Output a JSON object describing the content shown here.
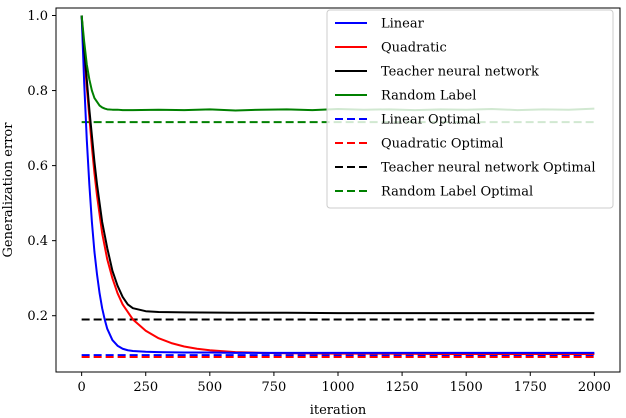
{
  "chart_data": {
    "type": "line",
    "xlabel": "iteration",
    "ylabel": "Generalization error",
    "xlim": [
      -100,
      2100
    ],
    "ylim": [
      0.05,
      1.02
    ],
    "xticks": [
      0,
      250,
      500,
      750,
      1000,
      1250,
      1500,
      1750,
      2000
    ],
    "yticks": [
      0.2,
      0.4,
      0.6,
      0.8,
      1.0
    ],
    "xtick_labels": [
      "0",
      "250",
      "500",
      "750",
      "1000",
      "1250",
      "1500",
      "1750",
      "2000"
    ],
    "ytick_labels": [
      "0.2",
      "0.4",
      "0.6",
      "0.8",
      "1.0"
    ],
    "grid": false,
    "legend_position": "top-right",
    "series": [
      {
        "name": "Linear",
        "color": "#0000ff",
        "style": "solid",
        "x": [
          0,
          10,
          20,
          30,
          40,
          50,
          60,
          70,
          80,
          90,
          100,
          120,
          140,
          160,
          180,
          200,
          250,
          300,
          400,
          500,
          600,
          800,
          1000,
          1200,
          1400,
          1600,
          1800,
          2000
        ],
        "y": [
          1.0,
          0.82,
          0.67,
          0.55,
          0.45,
          0.37,
          0.31,
          0.26,
          0.22,
          0.19,
          0.165,
          0.135,
          0.12,
          0.112,
          0.108,
          0.106,
          0.104,
          0.103,
          0.102,
          0.102,
          0.101,
          0.101,
          0.101,
          0.101,
          0.101,
          0.101,
          0.101,
          0.101
        ]
      },
      {
        "name": "Quadratic",
        "color": "#ff0000",
        "style": "solid",
        "x": [
          0,
          10,
          20,
          30,
          40,
          50,
          60,
          70,
          80,
          100,
          120,
          140,
          160,
          180,
          200,
          250,
          300,
          350,
          400,
          450,
          500,
          600,
          700,
          800,
          1000,
          1200,
          1400,
          1600,
          1800,
          2000
        ],
        "y": [
          1.0,
          0.9,
          0.81,
          0.73,
          0.65,
          0.58,
          0.52,
          0.47,
          0.42,
          0.35,
          0.3,
          0.26,
          0.23,
          0.21,
          0.19,
          0.16,
          0.14,
          0.127,
          0.118,
          0.112,
          0.108,
          0.103,
          0.101,
          0.1,
          0.099,
          0.099,
          0.098,
          0.098,
          0.098,
          0.098
        ]
      },
      {
        "name": "Teacher neural network",
        "color": "#000000",
        "style": "solid",
        "x": [
          0,
          10,
          20,
          30,
          40,
          50,
          60,
          70,
          80,
          100,
          120,
          140,
          160,
          180,
          200,
          250,
          300,
          400,
          600,
          800,
          1000,
          1200,
          1400,
          1600,
          1800,
          2000
        ],
        "y": [
          1.0,
          0.91,
          0.83,
          0.75,
          0.68,
          0.61,
          0.55,
          0.5,
          0.45,
          0.38,
          0.32,
          0.28,
          0.25,
          0.23,
          0.22,
          0.212,
          0.21,
          0.209,
          0.208,
          0.208,
          0.207,
          0.207,
          0.207,
          0.207,
          0.207,
          0.207
        ]
      },
      {
        "name": "Random Label",
        "color": "#008000",
        "style": "solid",
        "x": [
          0,
          10,
          20,
          30,
          40,
          50,
          60,
          70,
          80,
          90,
          100,
          120,
          140,
          160,
          200,
          300,
          400,
          500,
          600,
          700,
          800,
          900,
          1000,
          1100,
          1200,
          1300,
          1400,
          1500,
          1600,
          1700,
          1800,
          1900,
          2000
        ],
        "y": [
          1.0,
          0.93,
          0.87,
          0.83,
          0.8,
          0.78,
          0.77,
          0.76,
          0.755,
          0.752,
          0.75,
          0.749,
          0.749,
          0.748,
          0.748,
          0.749,
          0.748,
          0.75,
          0.747,
          0.749,
          0.75,
          0.748,
          0.751,
          0.749,
          0.75,
          0.748,
          0.75,
          0.749,
          0.751,
          0.748,
          0.75,
          0.749,
          0.752
        ]
      },
      {
        "name": "Linear Optimal",
        "color": "#0000ff",
        "style": "dashed",
        "x": [
          0,
          2000
        ],
        "y": [
          0.095,
          0.095
        ]
      },
      {
        "name": "Quadratic Optimal",
        "color": "#ff0000",
        "style": "dashed",
        "x": [
          0,
          2000
        ],
        "y": [
          0.09,
          0.09
        ]
      },
      {
        "name": "Teacher neural network Optimal",
        "color": "#000000",
        "style": "dashed",
        "x": [
          0,
          2000
        ],
        "y": [
          0.19,
          0.19
        ]
      },
      {
        "name": "Random Label Optimal",
        "color": "#008000",
        "style": "dashed",
        "x": [
          0,
          2000
        ],
        "y": [
          0.716,
          0.716
        ]
      }
    ]
  }
}
